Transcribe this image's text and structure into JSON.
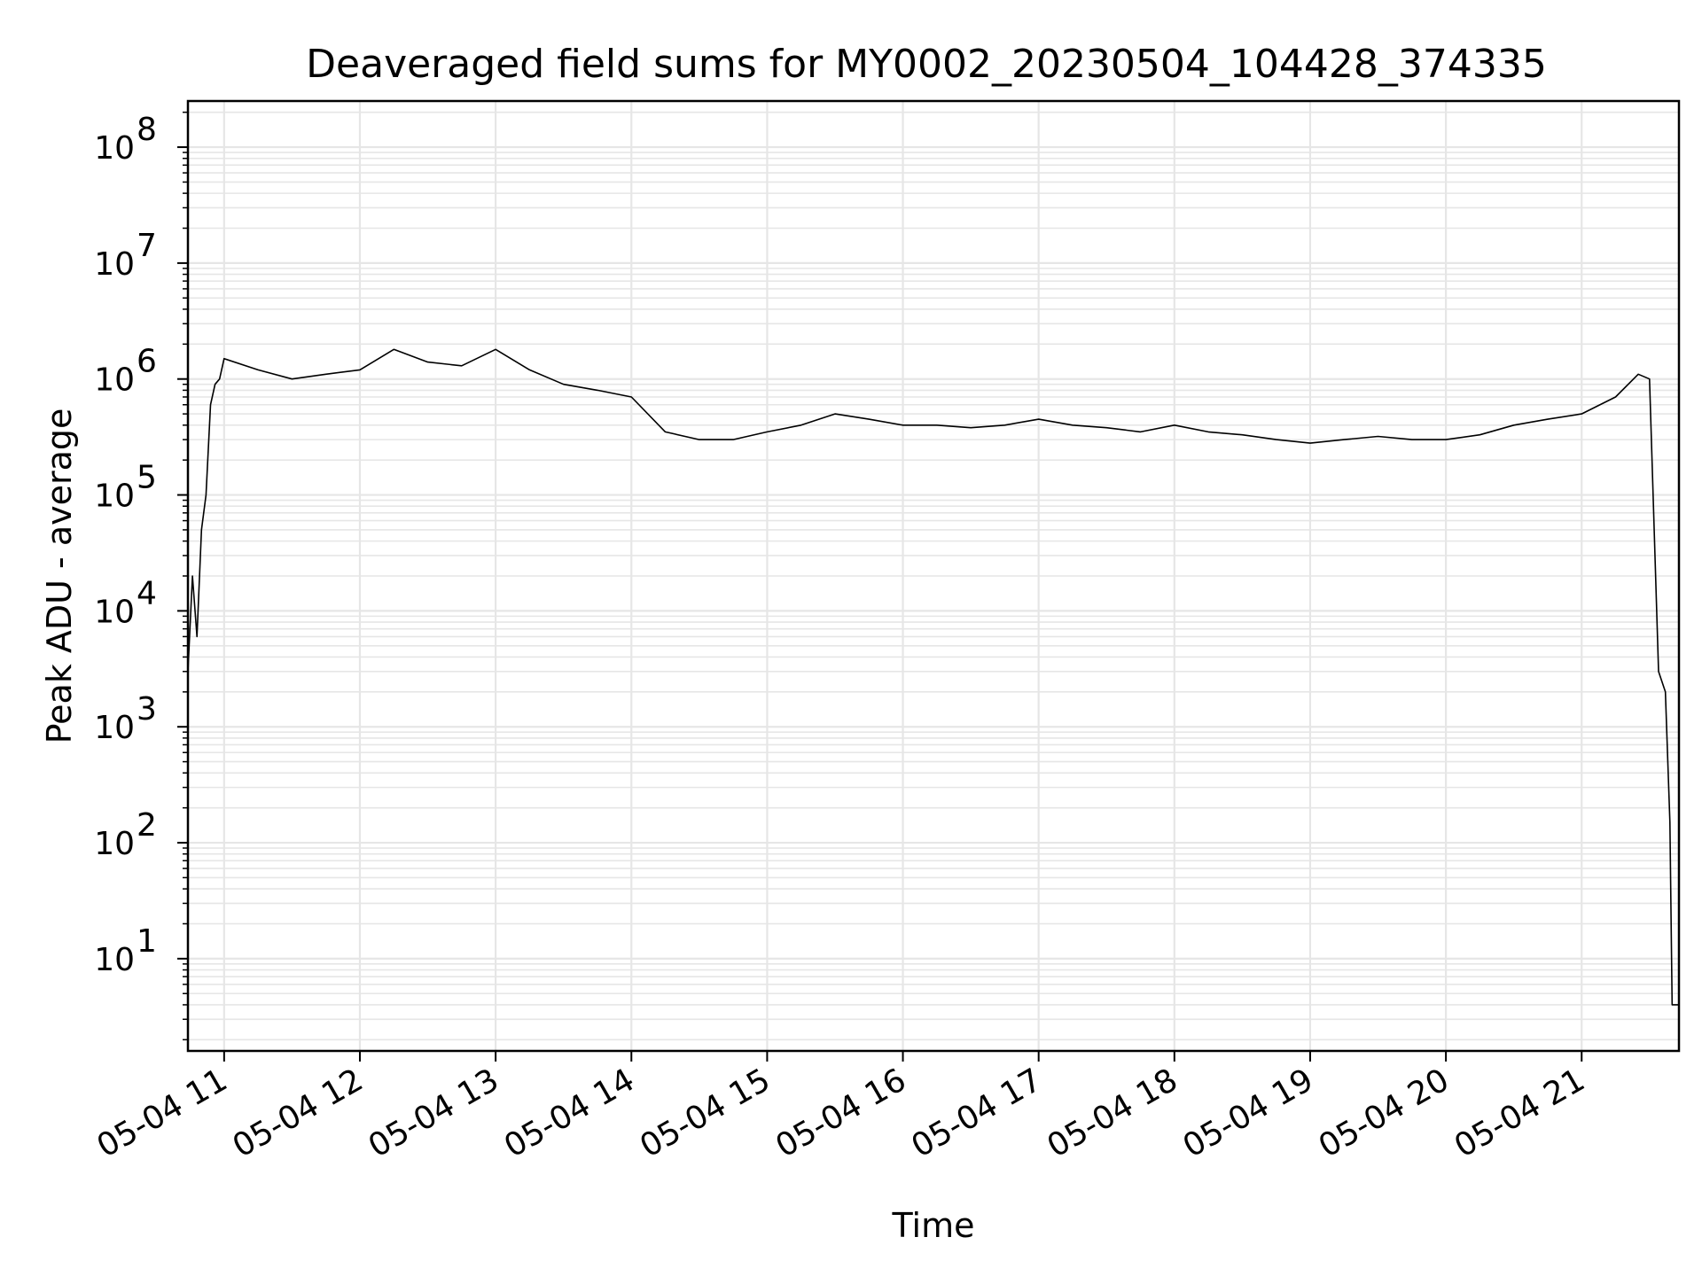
{
  "chart_data": {
    "type": "line",
    "title": "Deaveraged field sums for MY0002_20230504_104428_374335",
    "xlabel": "Time",
    "ylabel": "Peak ADU - average",
    "yscale": "log",
    "ylim": [
      1.6,
      250000000.0
    ],
    "xlim": [
      "05-04 10:44",
      "05-04 21:43"
    ],
    "grid": true,
    "legend": "none",
    "line_color": "#000000",
    "grid_color": "#e6e6e6",
    "x_ticks": [
      {
        "time": "05-04 11:00",
        "label": "05-04 11"
      },
      {
        "time": "05-04 12:00",
        "label": "05-04 12"
      },
      {
        "time": "05-04 13:00",
        "label": "05-04 13"
      },
      {
        "time": "05-04 14:00",
        "label": "05-04 14"
      },
      {
        "time": "05-04 15:00",
        "label": "05-04 15"
      },
      {
        "time": "05-04 16:00",
        "label": "05-04 16"
      },
      {
        "time": "05-04 17:00",
        "label": "05-04 17"
      },
      {
        "time": "05-04 18:00",
        "label": "05-04 18"
      },
      {
        "time": "05-04 19:00",
        "label": "05-04 19"
      },
      {
        "time": "05-04 20:00",
        "label": "05-04 20"
      },
      {
        "time": "05-04 21:00",
        "label": "05-04 21"
      }
    ],
    "y_ticks": [
      {
        "value": 10,
        "base": "10",
        "exp": "1"
      },
      {
        "value": 100,
        "base": "10",
        "exp": "2"
      },
      {
        "value": 1000,
        "base": "10",
        "exp": "3"
      },
      {
        "value": 10000,
        "base": "10",
        "exp": "4"
      },
      {
        "value": 100000,
        "base": "10",
        "exp": "5"
      },
      {
        "value": 1000000,
        "base": "10",
        "exp": "6"
      },
      {
        "value": 10000000,
        "base": "10",
        "exp": "7"
      },
      {
        "value": 100000000,
        "base": "10",
        "exp": "8"
      }
    ],
    "series": [
      {
        "x": [
          "05-04 10:44",
          "05-04 10:46",
          "05-04 10:48",
          "05-04 10:50",
          "05-04 10:52",
          "05-04 10:54",
          "05-04 10:56",
          "05-04 10:58",
          "05-04 11:00",
          "05-04 11:15",
          "05-04 11:30",
          "05-04 11:45",
          "05-04 12:00",
          "05-04 12:15",
          "05-04 12:30",
          "05-04 12:45",
          "05-04 13:00",
          "05-04 13:15",
          "05-04 13:30",
          "05-04 13:45",
          "05-04 14:00",
          "05-04 14:15",
          "05-04 14:30",
          "05-04 14:45",
          "05-04 15:00",
          "05-04 15:15",
          "05-04 15:30",
          "05-04 15:45",
          "05-04 16:00",
          "05-04 16:15",
          "05-04 16:30",
          "05-04 16:45",
          "05-04 17:00",
          "05-04 17:15",
          "05-04 17:30",
          "05-04 17:45",
          "05-04 18:00",
          "05-04 18:15",
          "05-04 18:30",
          "05-04 18:45",
          "05-04 19:00",
          "05-04 19:15",
          "05-04 19:30",
          "05-04 19:45",
          "05-04 20:00",
          "05-04 20:15",
          "05-04 20:30",
          "05-04 20:45",
          "05-04 21:00",
          "05-04 21:15",
          "05-04 21:25",
          "05-04 21:30",
          "05-04 21:34",
          "05-04 21:37",
          "05-04 21:39",
          "05-04 21:40",
          "05-04 21:43"
        ],
        "y": [
          3000,
          20000,
          6000,
          50000,
          100000,
          600000,
          900000,
          1000000,
          1500000,
          1200000,
          1000000,
          1100000,
          1200000,
          1800000,
          1400000,
          1300000,
          1800000,
          1200000,
          900000,
          800000,
          700000,
          350000,
          300000,
          300000,
          350000,
          400000,
          500000,
          450000,
          400000,
          400000,
          380000,
          400000,
          450000,
          400000,
          380000,
          350000,
          400000,
          350000,
          330000,
          300000,
          280000,
          300000,
          320000,
          300000,
          300000,
          330000,
          400000,
          450000,
          500000,
          700000,
          1100000,
          1000000,
          3000,
          2000,
          150,
          4,
          4
        ]
      }
    ]
  }
}
